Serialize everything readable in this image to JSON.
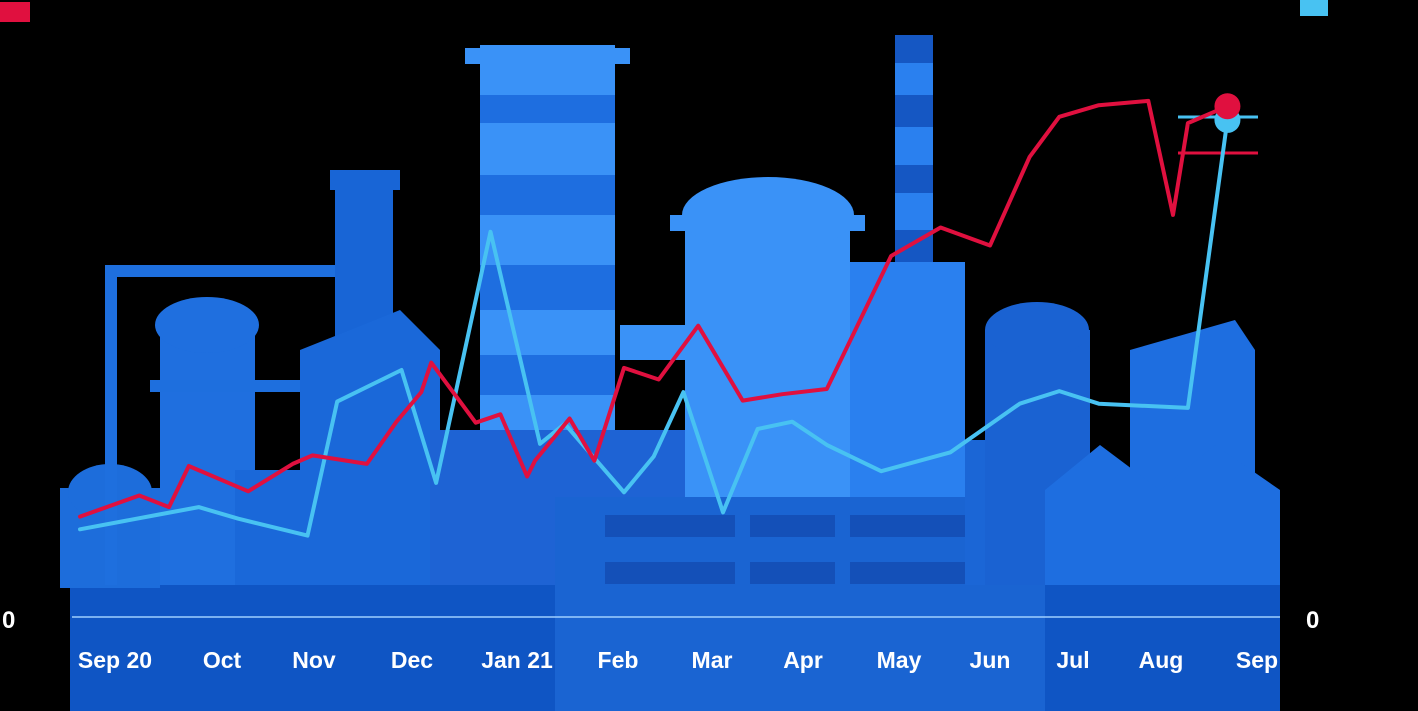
{
  "chart_data": {
    "type": "line",
    "title": "",
    "xlabel": "",
    "categories": [
      "Sep 20",
      "Oct",
      "Nov",
      "Dec",
      "Jan 21",
      "Feb",
      "Mar",
      "Apr",
      "May",
      "Jun",
      "Jul",
      "Aug",
      "Sep"
    ],
    "y_left": {
      "label": "",
      "ticks": [
        "0",
        "",
        "",
        "",
        "",
        ""
      ],
      "range": [
        0,
        5
      ]
    },
    "y_right": {
      "label": "",
      "ticks": [
        "0",
        "",
        "",
        "",
        "",
        ""
      ],
      "range": [
        0,
        5
      ]
    },
    "legend": [
      "",
      ""
    ],
    "series": [
      {
        "axis": "left",
        "color": "#e0103f",
        "x": [
          0,
          0.6,
          0.9,
          1.1,
          1.7,
          2.15,
          2.35,
          2.9,
          3.2,
          3.45,
          3.55,
          4.0,
          4.25,
          4.52,
          4.6,
          4.95,
          5.2,
          5.5,
          5.85,
          6.25,
          6.7,
          7.1,
          7.55,
          8.2,
          8.7,
          9.2,
          9.6,
          9.9,
          10.3,
          10.8,
          11.05,
          11.2,
          11.6
        ],
        "values": [
          0.98,
          1.18,
          1.07,
          1.46,
          1.22,
          1.48,
          1.56,
          1.48,
          1.88,
          2.16,
          2.44,
          1.87,
          1.95,
          1.36,
          1.51,
          1.91,
          1.51,
          2.39,
          2.28,
          2.79,
          2.08,
          2.14,
          2.19,
          3.45,
          3.72,
          3.55,
          4.39,
          4.77,
          4.88,
          4.92,
          3.84,
          4.71,
          4.87
        ]
      },
      {
        "axis": "right",
        "color": "#48c2f2",
        "x": [
          0,
          0.8,
          1.2,
          1.6,
          2.3,
          2.6,
          3.25,
          3.6,
          4.15,
          4.65,
          4.9,
          5.5,
          5.8,
          6.1,
          6.5,
          6.85,
          7.2,
          7.55,
          8.1,
          8.8,
          9.5,
          9.9,
          10.3,
          11.2,
          11.6
        ],
        "values": [
          0.86,
          1.0,
          1.07,
          0.96,
          0.8,
          2.07,
          2.37,
          1.3,
          3.68,
          1.67,
          1.86,
          1.21,
          1.55,
          2.16,
          1.02,
          1.81,
          1.88,
          1.66,
          1.41,
          1.59,
          2.05,
          2.17,
          2.05,
          2.01,
          4.74
        ]
      }
    ],
    "annotations": [
      "",
      ""
    ],
    "grid": false,
    "legend_position": "top-left / top-right"
  }
}
